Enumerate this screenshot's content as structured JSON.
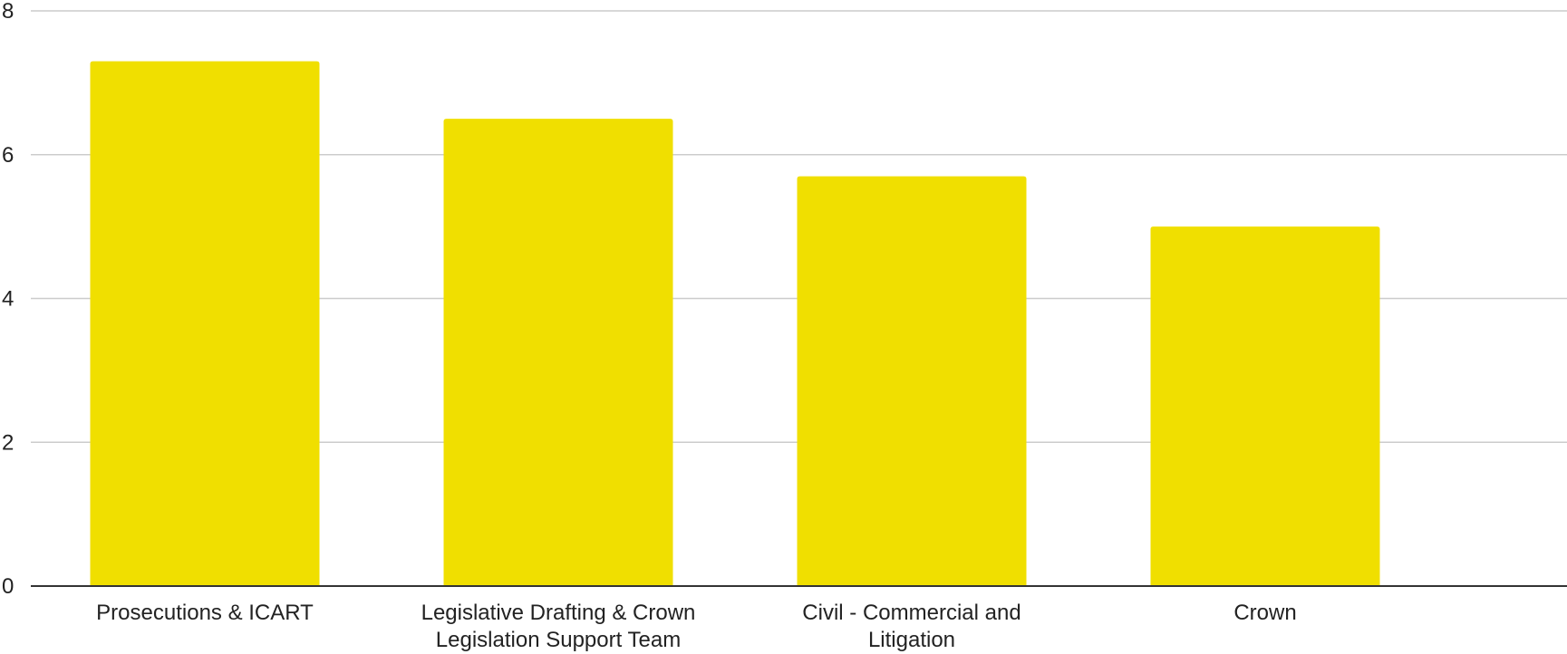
{
  "chart_data": {
    "type": "bar",
    "title": "",
    "xlabel": "",
    "ylabel": "",
    "categories": [
      [
        "Prosecutions & ICART"
      ],
      [
        "Legislative Drafting & Crown",
        "Legislation Support Team"
      ],
      [
        "Civil - Commercial and",
        "Litigation"
      ],
      [
        "Crown"
      ]
    ],
    "values": [
      7.3,
      6.5,
      5.7,
      5.0
    ],
    "ylim": [
      0,
      8
    ],
    "yticks": [
      0,
      2,
      4,
      6,
      8
    ],
    "grid": true,
    "legend": "none",
    "bar_color": "#f0df00",
    "grid_color": "#cccccc",
    "axis_color": "#333333",
    "text_color": "#222222"
  }
}
